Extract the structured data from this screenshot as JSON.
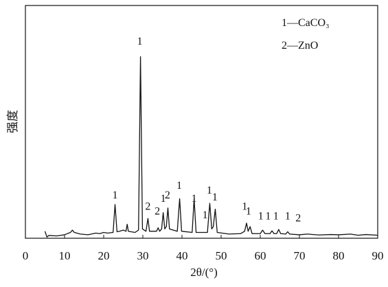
{
  "chart_data": {
    "type": "line",
    "x_label": "2θ/(°)",
    "y_label": "强度",
    "legend_texts": [
      "1—CaCO₃",
      "2—ZnO"
    ],
    "legend": "upper right",
    "xlim": [
      0,
      90
    ],
    "ylim": [
      0,
      100
    ],
    "xticks": [
      0,
      10,
      20,
      30,
      40,
      50,
      60,
      70,
      80,
      90
    ],
    "series": [
      {
        "color": "#111111",
        "x": [
          5,
          5.5,
          6,
          8,
          10,
          11.5,
          12,
          12.5,
          14,
          16,
          18,
          19,
          20,
          21,
          22.4,
          22.9,
          23.4,
          24,
          25,
          25.7,
          26,
          26.3,
          28,
          28.9,
          29.4,
          29.9,
          30.8,
          31.3,
          31.7,
          33.5,
          33.9,
          34.3,
          34.8,
          35.2,
          35.6,
          36.0,
          36.4,
          36.8,
          38.8,
          39.4,
          39.9,
          42.6,
          43.1,
          43.6,
          46.5,
          47.1,
          47.6,
          48.0,
          48.5,
          49.0,
          52,
          55,
          56.0,
          56.5,
          56.9,
          57.4,
          57.9,
          60,
          60.6,
          61.2,
          62.5,
          63,
          63.5,
          64.2,
          64.7,
          65.2,
          66.5,
          67,
          67.5,
          70,
          72,
          75,
          78,
          80,
          83,
          85,
          87,
          90
        ],
        "values": [
          3,
          0.5,
          1.2,
          1.0,
          1.5,
          2.5,
          3.5,
          2.5,
          1.8,
          1.5,
          2.2,
          2.0,
          2.5,
          2.2,
          2.5,
          14.5,
          2.8,
          3,
          3.5,
          3,
          6,
          3,
          2.5,
          3.5,
          78,
          4,
          3,
          8.5,
          3,
          3,
          4.5,
          3,
          4,
          11,
          4,
          5,
          13,
          4,
          3,
          17,
          3,
          2.5,
          17,
          2.5,
          2.5,
          15,
          4,
          5,
          12.5,
          2.5,
          1.8,
          2,
          3,
          6.5,
          3,
          5,
          2,
          2,
          3.5,
          2,
          2,
          3.2,
          2,
          2,
          3.8,
          2,
          1.8,
          2.8,
          1.8,
          1.5,
          1.8,
          1.4,
          1.6,
          1.5,
          1.8,
          1.3,
          1.6,
          1.3
        ]
      }
    ],
    "annotations": [
      {
        "text": "1",
        "x": 22.9,
        "y": 16
      },
      {
        "text": "1",
        "x": 29.2,
        "y": 82
      },
      {
        "text": "2",
        "x": 31.3,
        "y": 11
      },
      {
        "text": "2",
        "x": 33.7,
        "y": 9
      },
      {
        "text": "1",
        "x": 35.2,
        "y": 14.5
      },
      {
        "text": "2",
        "x": 36.3,
        "y": 16
      },
      {
        "text": "1",
        "x": 39.3,
        "y": 20
      },
      {
        "text": "1",
        "x": 43.1,
        "y": 14.5
      },
      {
        "text": "1",
        "x": 45.9,
        "y": 7.4
      },
      {
        "text": "1",
        "x": 47.0,
        "y": 18
      },
      {
        "text": "1",
        "x": 48.4,
        "y": 15
      },
      {
        "text": "1",
        "x": 56.0,
        "y": 11
      },
      {
        "text": "1",
        "x": 57.0,
        "y": 9
      },
      {
        "text": "1",
        "x": 60.1,
        "y": 7
      },
      {
        "text": "1",
        "x": 62.0,
        "y": 7
      },
      {
        "text": "1",
        "x": 64.0,
        "y": 7
      },
      {
        "text": "1",
        "x": 67.0,
        "y": 7
      },
      {
        "text": "2",
        "x": 69.7,
        "y": 6
      }
    ]
  }
}
